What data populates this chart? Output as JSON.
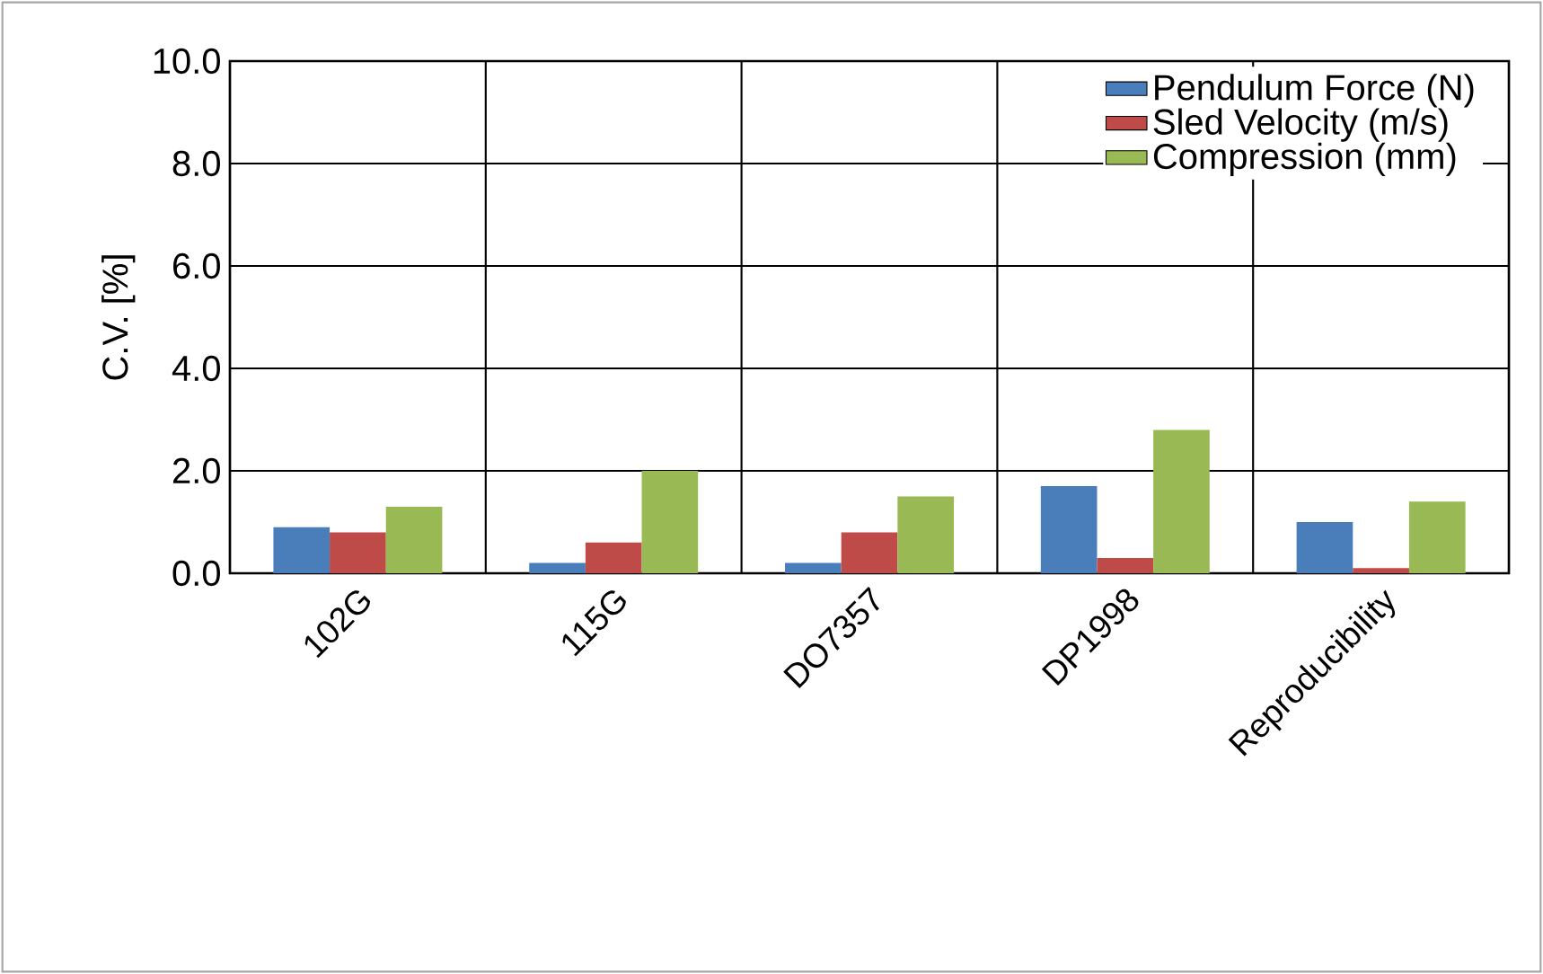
{
  "chart_data": {
    "type": "bar",
    "ylabel": "C.V. [%]",
    "categories": [
      "102G",
      "115G",
      "DO7357",
      "DP1998",
      "Reproducibility"
    ],
    "series": [
      {
        "name": "Pendulum Force (N)",
        "color": "#4a7ebb",
        "values": [
          0.9,
          0.2,
          0.2,
          1.7,
          1.0
        ]
      },
      {
        "name": "Sled Velocity (m/s)",
        "color": "#be4b48",
        "values": [
          0.8,
          0.6,
          0.8,
          0.3,
          0.1
        ]
      },
      {
        "name": "Compression (mm)",
        "color": "#98b954",
        "values": [
          1.3,
          2.0,
          1.5,
          2.8,
          1.4
        ]
      }
    ],
    "ylim": [
      0,
      10
    ],
    "yticks": [
      {
        "value": 0,
        "label": "0.0"
      },
      {
        "value": 2,
        "label": "2.0"
      },
      {
        "value": 4,
        "label": "4.0"
      },
      {
        "value": 6,
        "label": "6.0"
      },
      {
        "value": 8,
        "label": "8.0"
      },
      {
        "value": 10,
        "label": "10.0"
      }
    ],
    "grid": true,
    "legend": "top right"
  }
}
